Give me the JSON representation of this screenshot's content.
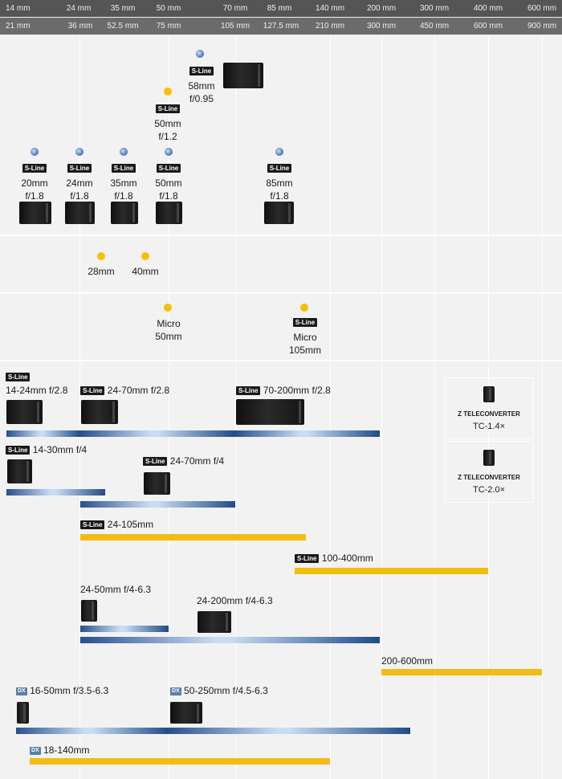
{
  "header": {
    "row1": [
      "14 mm",
      "24 mm",
      "35 mm",
      "50 mm",
      "70 mm",
      "85 mm",
      "140 mm",
      "200 mm",
      "300 mm",
      "400 mm",
      "600 mm"
    ],
    "row2": [
      "21 mm",
      "36 mm",
      "52.5 mm",
      "75 mm",
      "105 mm",
      "127.5 mm",
      "210 mm",
      "300 mm",
      "450 mm",
      "600 mm",
      "900 mm"
    ]
  },
  "badges": {
    "sline": "S-Line",
    "dx": "DX"
  },
  "primes_fast": {
    "l58": {
      "name": "58mm",
      "aperture": "f/0.95"
    },
    "l50_12": {
      "name": "50mm",
      "aperture": "f/1.2"
    }
  },
  "primes_18": [
    {
      "name": "20mm",
      "aperture": "f/1.8"
    },
    {
      "name": "24mm",
      "aperture": "f/1.8"
    },
    {
      "name": "35mm",
      "aperture": "f/1.8"
    },
    {
      "name": "50mm",
      "aperture": "f/1.8"
    },
    {
      "name": "85mm",
      "aperture": "f/1.8"
    }
  ],
  "compact": {
    "a": "28mm",
    "b": "40mm"
  },
  "macro": {
    "m50": {
      "line1": "Micro",
      "line2": "50mm"
    },
    "m105": {
      "line1": "Micro",
      "line2": "105mm"
    }
  },
  "zooms": {
    "z1424": "14-24mm f/2.8",
    "z2470_28": "24-70mm f/2.8",
    "z70200": "70-200mm f/2.8",
    "z1430": "14-30mm f/4",
    "z2470_4": "24-70mm f/4",
    "z24105": "24-105mm",
    "z100400": "100-400mm",
    "z2450": "24-50mm f/4-6.3",
    "z24200": "24-200mm f/4-6.3",
    "z200600": "200-600mm",
    "dx1650": "16-50mm f/3.5-6.3",
    "dx50250": "50-250mm f/4.5-6.3",
    "dx18140": "18-140mm"
  },
  "teleconverters": [
    {
      "line1": "Z TELECONVERTER",
      "line2": "TC-1.4×"
    },
    {
      "line1": "Z TELECONVERTER",
      "line2": "TC-2.0×"
    }
  ],
  "colors": {
    "blue_bar": "#284f8c",
    "yellow_bar": "#f1bd12",
    "header": "#555555"
  }
}
